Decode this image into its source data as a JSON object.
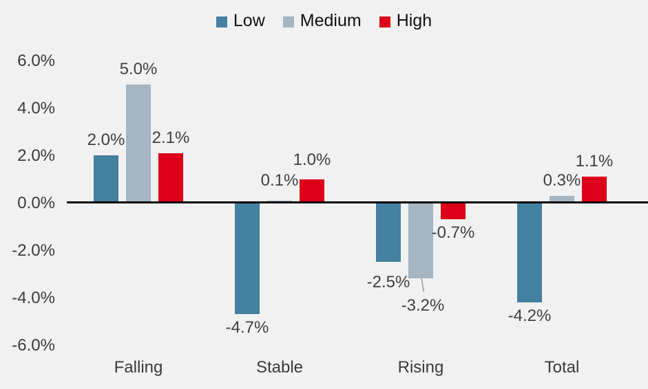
{
  "chart_data": {
    "type": "bar",
    "title": "",
    "categories": [
      "Falling",
      "Stable",
      "Rising",
      "Total"
    ],
    "series": [
      {
        "name": "Low",
        "color": "#44809f",
        "values": [
          2.0,
          -4.7,
          -2.5,
          -4.2
        ],
        "labels": [
          "2.0%",
          "-4.7%",
          "-2.5%",
          "-4.2%"
        ],
        "label_offsets": [
          [
            0,
            0
          ],
          [
            0,
            0
          ],
          [
            0,
            10
          ],
          [
            0,
            0
          ]
        ]
      },
      {
        "name": "Medium",
        "color": "#a4b5c3",
        "values": [
          5.0,
          0.1,
          -3.2,
          0.3
        ],
        "labels": [
          "5.0%",
          "0.1%",
          "-3.2%",
          "0.3%"
        ],
        "label_offsets": [
          [
            0,
            0
          ],
          [
            0,
            -7
          ],
          [
            3,
            20
          ],
          [
            0,
            0
          ]
        ]
      },
      {
        "name": "High",
        "color": "#dc0019",
        "values": [
          2.1,
          1.0,
          -0.7,
          1.1
        ],
        "labels": [
          "2.1%",
          "1.0%",
          "-0.7%",
          "1.1%"
        ],
        "label_offsets": [
          [
            0,
            0
          ],
          [
            0,
            -6
          ],
          [
            0,
            0
          ],
          [
            0,
            0
          ]
        ]
      }
    ],
    "y_ticks": [
      {
        "label": "6.0%",
        "value": 6
      },
      {
        "label": "4.0%",
        "value": 4
      },
      {
        "label": "2.0%",
        "value": 2
      },
      {
        "label": "0.0%",
        "value": 0
      },
      {
        "label": "-2.0%",
        "value": -2
      },
      {
        "label": "-4.0%",
        "value": -4
      },
      {
        "label": "-6.0%",
        "value": -6
      }
    ],
    "ylim": [
      -6,
      6
    ],
    "grid": false,
    "legend_position": "top",
    "xlabel": "",
    "ylabel": "",
    "callout": {
      "series_index": 1,
      "category_index": 2,
      "color": "#9a9a9a"
    }
  },
  "colors": {
    "background": "#f1f1f2",
    "axis_line": "#000000",
    "tick_text": "#3a3a3a",
    "data_label_text": "#404040",
    "legend_text": "#121212"
  }
}
